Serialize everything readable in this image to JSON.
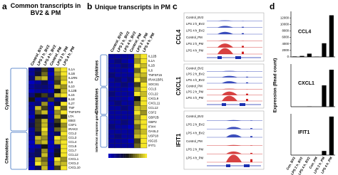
{
  "panel_a": {
    "label": "a",
    "title": "Common transcripts in BV2 & PM",
    "columns": [
      "Control_BV2",
      "LPS 2 h_BV2",
      "LPS 4 h_BV2",
      "Control_PM",
      "LPS 2 h_PM",
      "LPS 4 h_PM"
    ],
    "groups": [
      {
        "name": "Cytokines",
        "rows": [
          {
            "gene": "IL1A",
            "values": [
              0.1,
              0.3,
              0.6,
              0.1,
              0.9,
              1.0
            ]
          },
          {
            "gene": "IL1B",
            "values": [
              0.1,
              0.4,
              0.7,
              0.0,
              0.8,
              1.0
            ]
          },
          {
            "gene": "IL1RN",
            "values": [
              0.2,
              0.8,
              0.9,
              0.1,
              0.7,
              0.9
            ]
          },
          {
            "gene": "IL6",
            "values": [
              0.0,
              0.1,
              0.3,
              0.0,
              0.6,
              1.0
            ]
          },
          {
            "gene": "IL10",
            "values": [
              0.1,
              0.2,
              0.2,
              0.1,
              0.9,
              0.8
            ]
          },
          {
            "gene": "IL12B",
            "values": [
              0.0,
              0.1,
              0.1,
              0.0,
              0.5,
              0.9
            ]
          },
          {
            "gene": "IL15",
            "values": [
              0.2,
              0.5,
              0.6,
              0.3,
              0.9,
              1.0
            ]
          },
          {
            "gene": "IL18",
            "values": [
              0.5,
              0.1,
              0.2,
              0.6,
              0.2,
              0.3
            ]
          },
          {
            "gene": "IL27",
            "values": [
              0.1,
              0.2,
              0.8,
              0.0,
              0.4,
              1.0
            ]
          },
          {
            "gene": "TNF",
            "values": [
              0.1,
              0.9,
              0.6,
              0.1,
              1.0,
              0.7
            ]
          },
          {
            "gene": "TNFSF9",
            "values": [
              0.1,
              0.7,
              0.9,
              0.0,
              0.8,
              1.0
            ]
          },
          {
            "gene": "LTA",
            "values": [
              0.0,
              0.5,
              0.4,
              0.1,
              0.9,
              0.6
            ]
          },
          {
            "gene": "EBI3",
            "values": [
              0.2,
              0.6,
              0.9,
              0.1,
              0.6,
              1.0
            ]
          },
          {
            "gene": "CSF1",
            "values": [
              0.3,
              0.6,
              0.9,
              0.2,
              0.5,
              0.8
            ]
          },
          {
            "gene": "IRAK3",
            "values": [
              0.1,
              0.6,
              1.0,
              0.1,
              0.7,
              0.9
            ]
          }
        ]
      },
      {
        "name": "Chemokines",
        "rows": [
          {
            "gene": "CCL2",
            "values": [
              0.1,
              0.4,
              0.9,
              0.1,
              0.3,
              1.0
            ]
          },
          {
            "gene": "CCL3",
            "values": [
              0.1,
              0.9,
              0.8,
              0.1,
              1.0,
              0.9
            ]
          },
          {
            "gene": "CCL4",
            "values": [
              0.0,
              0.8,
              0.9,
              0.0,
              0.9,
              1.0
            ]
          },
          {
            "gene": "CCL5",
            "values": [
              0.0,
              0.1,
              0.5,
              0.0,
              0.2,
              1.0
            ]
          },
          {
            "gene": "CCL7",
            "values": [
              0.1,
              0.3,
              0.8,
              0.0,
              0.4,
              1.0
            ]
          },
          {
            "gene": "CCL12",
            "values": [
              0.2,
              0.3,
              0.9,
              0.1,
              0.5,
              1.0
            ]
          },
          {
            "gene": "CXCL1",
            "values": [
              0.1,
              0.9,
              0.7,
              0.0,
              1.0,
              0.8
            ]
          },
          {
            "gene": "CXCL2",
            "values": [
              0.1,
              1.0,
              0.8,
              0.1,
              0.9,
              0.9
            ]
          },
          {
            "gene": "CXCL10",
            "values": [
              0.0,
              0.3,
              0.9,
              0.0,
              0.6,
              1.0
            ]
          }
        ]
      }
    ]
  },
  "panel_b": {
    "label": "b",
    "title": "Unique transcripts in PM",
    "columns": [
      "Control_BV2",
      "LPS 2 h_BV2",
      "LPS 4 h_BV2",
      "Control_PM",
      "LPS 2 h_PM",
      "LPS 4 h_PM"
    ],
    "groups": [
      {
        "name": "Cytokines",
        "rows": [
          {
            "gene": "IL12B",
            "values": [
              0.1,
              0.1,
              0.1,
              0.1,
              0.9,
              1.0
            ]
          },
          {
            "gene": "IL1A",
            "values": [
              0.1,
              0.2,
              0.1,
              0.0,
              0.8,
              1.0
            ]
          },
          {
            "gene": "IL1B",
            "values": [
              0.1,
              0.1,
              0.2,
              0.1,
              1.0,
              0.9
            ]
          },
          {
            "gene": "IL6",
            "values": [
              0.1,
              0.1,
              0.1,
              0.0,
              0.7,
              1.0
            ]
          },
          {
            "gene": "TNFSF15",
            "values": [
              0.2,
              0.1,
              0.1,
              0.1,
              0.9,
              0.9
            ]
          },
          {
            "gene": "IRAK1BP1",
            "values": [
              0.1,
              0.2,
              0.1,
              0.2,
              1.0,
              0.8
            ]
          },
          {
            "gene": "SOCS1",
            "values": [
              0.1,
              0.1,
              0.2,
              0.1,
              0.6,
              1.0
            ]
          }
        ]
      },
      {
        "name": "Chemokines",
        "rows": [
          {
            "gene": "CCL5",
            "values": [
              0.1,
              0.1,
              0.1,
              0.0,
              0.8,
              1.0
            ]
          },
          {
            "gene": "CCL22",
            "values": [
              0.2,
              0.1,
              0.1,
              0.1,
              1.0,
              0.9
            ]
          },
          {
            "gene": "CXCL9",
            "values": [
              0.1,
              0.1,
              0.1,
              0.0,
              0.5,
              1.0
            ]
          },
          {
            "gene": "CXCL11",
            "values": [
              0.1,
              0.2,
              0.1,
              0.1,
              0.7,
              1.0
            ]
          },
          {
            "gene": "CCL12",
            "values": [
              0.1,
              0.1,
              0.2,
              0.1,
              0.9,
              0.9
            ]
          },
          {
            "gene": "CSF2",
            "values": [
              0.1,
              0.1,
              0.1,
              0.1,
              1.0,
              0.8
            ]
          }
        ]
      },
      {
        "name": "Interferon response genes",
        "rows": [
          {
            "gene": "GBP2B",
            "values": [
              0.1,
              0.1,
              0.1,
              0.1,
              0.8,
              1.0
            ]
          },
          {
            "gene": "GBP2",
            "values": [
              0.1,
              0.1,
              0.2,
              0.1,
              0.9,
              1.0
            ]
          },
          {
            "gene": "IFI44",
            "values": [
              0.2,
              0.1,
              0.1,
              0.0,
              0.7,
              1.0
            ]
          },
          {
            "gene": "OASL2",
            "values": [
              0.1,
              0.1,
              0.1,
              0.1,
              0.8,
              0.9
            ]
          },
          {
            "gene": "USP18",
            "values": [
              0.1,
              0.2,
              0.1,
              0.1,
              0.9,
              1.0
            ]
          },
          {
            "gene": "ISG15",
            "values": [
              0.1,
              0.1,
              0.1,
              0.0,
              0.6,
              1.0
            ]
          },
          {
            "gene": "IFIT1",
            "values": [
              0.1,
              0.1,
              0.1,
              0.1,
              0.7,
              1.0
            ]
          }
        ]
      }
    ]
  },
  "panel_c": {
    "label": "c",
    "genes": [
      "CCL4",
      "CXCL1",
      "IFIT1"
    ],
    "tracks": [
      "Control_BV2",
      "LPS 2 h_BV2",
      "LPS 4 h_BV2",
      "Control_PM",
      "LPS 2 h_PM",
      "LPS 4 h_PM"
    ]
  },
  "panel_d": {
    "label": "d",
    "y_label": "Expression (Read count)"
  },
  "chart_data": [
    {
      "type": "bar",
      "title": "CCL4",
      "color": "#000000",
      "categories": [
        "Con_BV2",
        "LPS 2 h_BV2",
        "LPS 4 h_BV2",
        "Con_PM",
        "LPS 2 h_PM",
        "LPS 4 h_PM"
      ],
      "values": [
        150,
        300,
        1000,
        100,
        4200,
        12800
      ],
      "ylim": [
        0,
        14000
      ],
      "yticks": [
        0,
        2000,
        4000,
        6000,
        8000,
        10000,
        12000
      ]
    },
    {
      "type": "bar",
      "title": "CXCL1",
      "color": "#000000",
      "categories": [
        "Con_BV2",
        "LPS 2 h_BV2",
        "LPS 4 h_BV2",
        "Con_PM",
        "LPS 2 h_PM",
        "LPS 4 h_PM"
      ],
      "values": [
        0,
        0,
        20,
        0,
        1500,
        2600
      ],
      "ylim": [
        0,
        3000
      ]
    },
    {
      "type": "bar",
      "title": "IFIT1",
      "color": "#000000",
      "categories": [
        "Con_BV2",
        "LPS 2 h_BV2",
        "LPS 4 h_BV2",
        "Con_PM",
        "LPS 2 h_PM",
        "LPS 4 h_PM"
      ],
      "values": [
        0,
        0,
        0,
        0,
        300,
        2800
      ],
      "ylim": [
        0,
        3000
      ]
    }
  ]
}
